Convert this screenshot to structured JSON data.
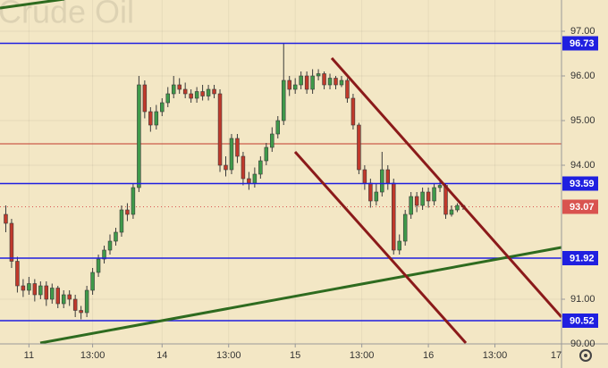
{
  "chart_data": {
    "type": "candlestick",
    "title": "Crude Oil",
    "x": [
      0,
      1,
      2,
      3,
      4,
      5,
      6,
      7,
      8,
      9,
      10,
      11,
      12,
      13,
      14,
      15,
      16,
      17,
      18,
      19,
      20,
      21,
      22,
      23,
      24,
      25,
      26,
      27,
      28,
      29,
      30,
      31,
      32,
      33,
      34,
      35,
      36,
      37,
      38,
      39,
      40,
      41,
      42,
      43,
      44,
      45,
      46,
      47,
      48,
      49,
      50,
      51,
      52,
      53,
      54,
      55,
      56,
      57,
      58,
      59,
      60,
      61,
      62,
      63,
      64,
      65,
      66,
      67,
      68,
      69,
      70,
      71,
      72,
      73,
      74,
      75,
      76,
      77,
      78,
      79
    ],
    "open": [
      92.9,
      92.7,
      91.85,
      91.3,
      91.2,
      91.35,
      91.1,
      91.3,
      91.0,
      91.25,
      90.9,
      91.1,
      91.0,
      90.75,
      90.7,
      91.2,
      91.6,
      91.9,
      92.1,
      92.3,
      92.5,
      93.0,
      92.9,
      93.5,
      95.8,
      95.2,
      94.9,
      95.2,
      95.4,
      95.6,
      95.8,
      95.7,
      95.6,
      95.5,
      95.65,
      95.55,
      95.7,
      95.6,
      94.0,
      93.9,
      94.6,
      94.2,
      93.7,
      93.6,
      93.8,
      94.1,
      94.4,
      94.7,
      95.0,
      95.9,
      95.7,
      95.8,
      96.0,
      95.7,
      96.0,
      96.05,
      95.8,
      95.95,
      95.8,
      95.9,
      95.5,
      94.9,
      93.9,
      93.6,
      93.2,
      93.4,
      93.9,
      93.6,
      92.1,
      92.3,
      92.9,
      93.3,
      93.1,
      93.4,
      93.2,
      93.5,
      93.55,
      92.9,
      93.0,
      93.1
    ],
    "high": [
      93.1,
      92.8,
      91.95,
      91.45,
      91.5,
      91.45,
      91.4,
      91.4,
      91.35,
      91.3,
      91.2,
      91.2,
      91.1,
      90.85,
      91.3,
      91.7,
      92.0,
      92.2,
      92.45,
      92.6,
      93.1,
      93.15,
      93.6,
      96.0,
      95.9,
      95.3,
      95.35,
      95.5,
      95.75,
      96.0,
      95.95,
      95.85,
      95.7,
      95.75,
      95.8,
      95.8,
      95.8,
      95.7,
      94.2,
      94.7,
      94.7,
      94.3,
      93.85,
      93.95,
      94.2,
      94.5,
      94.85,
      95.1,
      96.73,
      96.0,
      95.95,
      96.1,
      96.1,
      96.15,
      96.15,
      96.1,
      96.05,
      96.0,
      96.0,
      95.95,
      95.6,
      94.95,
      94.0,
      93.7,
      93.6,
      94.3,
      94.0,
      93.7,
      92.45,
      93.0,
      93.4,
      93.4,
      93.5,
      93.5,
      93.6,
      93.65,
      93.6,
      93.1,
      93.15,
      93.12
    ],
    "low": [
      92.5,
      91.7,
      91.15,
      91.05,
      91.1,
      90.95,
      91.0,
      90.85,
      90.9,
      90.8,
      90.8,
      90.85,
      90.6,
      90.55,
      90.6,
      91.1,
      91.5,
      91.8,
      92.0,
      92.2,
      92.4,
      92.75,
      92.8,
      93.4,
      95.05,
      94.75,
      94.8,
      95.1,
      95.3,
      95.5,
      95.6,
      95.5,
      95.4,
      95.4,
      95.45,
      95.45,
      95.5,
      93.85,
      93.75,
      93.8,
      94.05,
      93.55,
      93.45,
      93.5,
      93.7,
      94.0,
      94.3,
      94.6,
      94.9,
      95.55,
      95.6,
      95.7,
      95.6,
      95.6,
      95.9,
      95.7,
      95.7,
      95.7,
      95.75,
      95.4,
      94.8,
      93.8,
      93.45,
      93.05,
      93.1,
      93.3,
      93.45,
      92.0,
      92.0,
      92.2,
      92.8,
      92.95,
      93.0,
      93.05,
      93.1,
      93.4,
      92.8,
      92.85,
      92.95,
      93.0
    ],
    "close": [
      92.7,
      91.85,
      91.3,
      91.2,
      91.35,
      91.1,
      91.3,
      91.0,
      91.25,
      90.9,
      91.1,
      91.0,
      90.75,
      90.7,
      91.2,
      91.6,
      91.9,
      92.1,
      92.3,
      92.5,
      93.0,
      92.9,
      93.5,
      95.8,
      95.2,
      94.9,
      95.2,
      95.4,
      95.6,
      95.8,
      95.7,
      95.6,
      95.5,
      95.65,
      95.55,
      95.7,
      95.6,
      94.0,
      93.9,
      94.6,
      94.2,
      93.7,
      93.6,
      93.8,
      94.1,
      94.4,
      94.7,
      95.0,
      95.9,
      95.7,
      95.8,
      96.0,
      95.7,
      96.0,
      96.05,
      95.8,
      95.95,
      95.8,
      95.9,
      95.5,
      94.9,
      93.9,
      93.6,
      93.2,
      93.4,
      93.9,
      93.6,
      92.1,
      92.3,
      92.9,
      93.3,
      93.1,
      93.4,
      93.2,
      93.5,
      93.55,
      92.9,
      93.0,
      93.1,
      93.07
    ],
    "up_color": "#3f9a4a",
    "down_color": "#c0392b",
    "xlim": [
      -1,
      96
    ],
    "xticks": [
      {
        "value": 4,
        "label": "11"
      },
      {
        "value": 15,
        "label": "13:00"
      },
      {
        "value": 27,
        "label": "14"
      },
      {
        "value": 38.5,
        "label": "13:00"
      },
      {
        "value": 50,
        "label": "15"
      },
      {
        "value": 61.5,
        "label": "13:00"
      },
      {
        "value": 73,
        "label": "16"
      },
      {
        "value": 84.5,
        "label": "13:00"
      },
      {
        "value": 96,
        "label": "17"
      }
    ],
    "ylim": [
      90.0,
      97.7
    ],
    "yticks": [
      {
        "value": 97,
        "label": "97.00"
      },
      {
        "value": 96,
        "label": "96.00"
      },
      {
        "value": 95,
        "label": "95.00"
      },
      {
        "value": 94,
        "label": "94.00"
      },
      {
        "value": 91,
        "label": "91.00"
      },
      {
        "value": 90,
        "label": "90.00"
      }
    ],
    "grid": true,
    "levels": [
      {
        "value": 96.73,
        "color": "#1f1fe0"
      },
      {
        "value": 93.59,
        "color": "#1f1fe0"
      },
      {
        "value": 91.92,
        "color": "#1f1fe0"
      },
      {
        "value": 90.52,
        "color": "#1f1fe0"
      }
    ],
    "resistance": {
      "value": 94.48,
      "color": "#c0392b"
    },
    "last_price": {
      "value": 93.07,
      "color": "#d9534f"
    }
  }
}
